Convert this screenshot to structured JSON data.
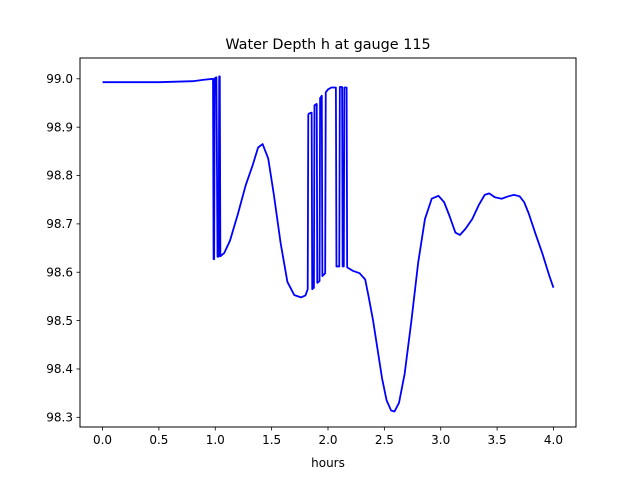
{
  "chart_data": {
    "type": "line",
    "title": "Water Depth h at gauge 115",
    "xlabel": "hours",
    "ylabel": "",
    "xlim": [
      -0.2,
      4.2
    ],
    "ylim": [
      98.28,
      99.043
    ],
    "xticks": [
      0.0,
      0.5,
      1.0,
      1.5,
      2.0,
      2.5,
      3.0,
      3.5,
      4.0
    ],
    "xtick_labels": [
      "0.0",
      "0.5",
      "1.0",
      "1.5",
      "2.0",
      "2.5",
      "3.0",
      "3.5",
      "4.0"
    ],
    "yticks": [
      98.3,
      98.4,
      98.5,
      98.6,
      98.7,
      98.8,
      98.9,
      99.0
    ],
    "ytick_labels": [
      "98.3",
      "98.4",
      "98.5",
      "98.6",
      "98.7",
      "98.8",
      "98.9",
      "99.0"
    ],
    "grid": false,
    "series": [
      {
        "color": "#0000ff",
        "points": [
          [
            0.0,
            98.993
          ],
          [
            0.5,
            98.993
          ],
          [
            0.8,
            98.995
          ],
          [
            0.9,
            98.998
          ],
          [
            0.98,
            99.0
          ],
          [
            0.985,
            98.627
          ],
          [
            0.99,
            98.627
          ],
          [
            0.995,
            99.0
          ],
          [
            1.0,
            99.002
          ],
          [
            1.01,
            99.003
          ],
          [
            1.02,
            98.632
          ],
          [
            1.03,
            98.632
          ],
          [
            1.035,
            99.005
          ],
          [
            1.04,
            99.005
          ],
          [
            1.045,
            98.633
          ],
          [
            1.08,
            98.64
          ],
          [
            1.13,
            98.665
          ],
          [
            1.2,
            98.72
          ],
          [
            1.27,
            98.78
          ],
          [
            1.33,
            98.82
          ],
          [
            1.38,
            98.858
          ],
          [
            1.42,
            98.865
          ],
          [
            1.47,
            98.835
          ],
          [
            1.52,
            98.76
          ],
          [
            1.58,
            98.66
          ],
          [
            1.64,
            98.58
          ],
          [
            1.7,
            98.553
          ],
          [
            1.76,
            98.548
          ],
          [
            1.8,
            98.552
          ],
          [
            1.82,
            98.565
          ],
          [
            1.825,
            98.925
          ],
          [
            1.83,
            98.928
          ],
          [
            1.855,
            98.93
          ],
          [
            1.86,
            98.565
          ],
          [
            1.875,
            98.568
          ],
          [
            1.88,
            98.945
          ],
          [
            1.9,
            98.948
          ],
          [
            1.905,
            98.578
          ],
          [
            1.925,
            98.582
          ],
          [
            1.93,
            98.96
          ],
          [
            1.945,
            98.965
          ],
          [
            1.95,
            98.592
          ],
          [
            1.975,
            98.598
          ],
          [
            1.98,
            98.972
          ],
          [
            2.0,
            98.978
          ],
          [
            2.03,
            98.982
          ],
          [
            2.07,
            98.982
          ],
          [
            2.075,
            98.612
          ],
          [
            2.1,
            98.612
          ],
          [
            2.105,
            98.983
          ],
          [
            2.125,
            98.983
          ],
          [
            2.13,
            98.612
          ],
          [
            2.14,
            98.612
          ],
          [
            2.145,
            98.982
          ],
          [
            2.165,
            98.982
          ],
          [
            2.17,
            98.61
          ],
          [
            2.22,
            98.603
          ],
          [
            2.28,
            98.598
          ],
          [
            2.33,
            98.585
          ],
          [
            2.36,
            98.55
          ],
          [
            2.4,
            98.5
          ],
          [
            2.44,
            98.44
          ],
          [
            2.48,
            98.38
          ],
          [
            2.52,
            98.335
          ],
          [
            2.56,
            98.314
          ],
          [
            2.59,
            98.312
          ],
          [
            2.63,
            98.33
          ],
          [
            2.68,
            98.39
          ],
          [
            2.74,
            98.5
          ],
          [
            2.8,
            98.62
          ],
          [
            2.86,
            98.71
          ],
          [
            2.92,
            98.752
          ],
          [
            2.98,
            98.758
          ],
          [
            3.03,
            98.745
          ],
          [
            3.08,
            98.715
          ],
          [
            3.13,
            98.682
          ],
          [
            3.17,
            98.677
          ],
          [
            3.22,
            98.69
          ],
          [
            3.28,
            98.71
          ],
          [
            3.34,
            98.74
          ],
          [
            3.39,
            98.76
          ],
          [
            3.43,
            98.763
          ],
          [
            3.48,
            98.755
          ],
          [
            3.54,
            98.752
          ],
          [
            3.6,
            98.757
          ],
          [
            3.65,
            98.76
          ],
          [
            3.7,
            98.757
          ],
          [
            3.74,
            98.745
          ],
          [
            3.78,
            98.722
          ],
          [
            3.84,
            98.68
          ],
          [
            3.9,
            98.64
          ],
          [
            3.96,
            98.595
          ],
          [
            4.0,
            98.568
          ]
        ]
      }
    ]
  }
}
